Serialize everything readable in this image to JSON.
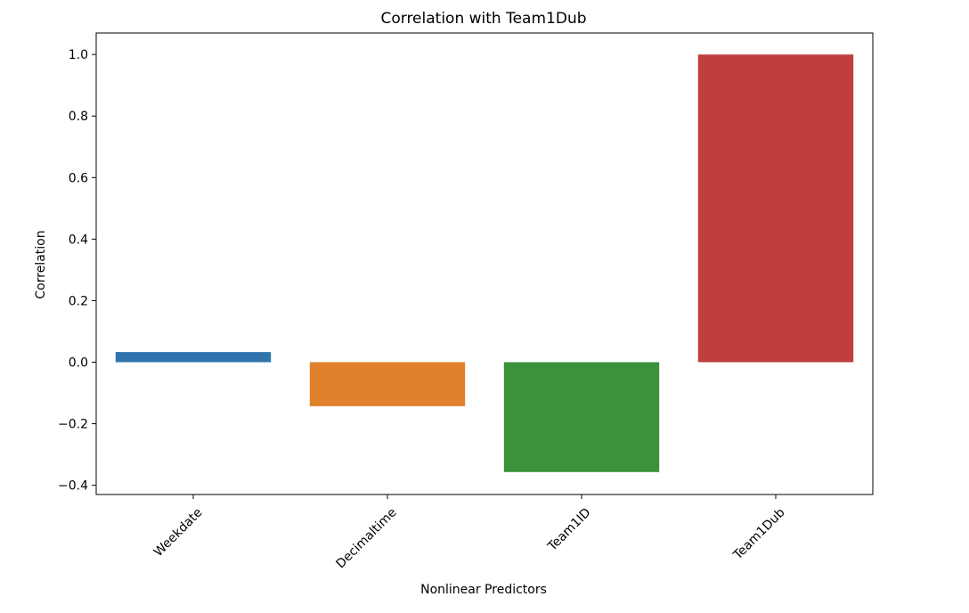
{
  "chart_data": {
    "type": "bar",
    "title": "Correlation with Team1Dub",
    "xlabel": "Nonlinear Predictors",
    "ylabel": "Correlation",
    "categories": [
      "Weekdate",
      "Decimaltime",
      "Team1ID",
      "Team1Dub"
    ],
    "values": [
      0.033,
      -0.143,
      -0.357,
      1.0
    ],
    "colors": [
      "#2f74ac",
      "#e1812c",
      "#3a923a",
      "#c03d3e"
    ],
    "ylim": [
      -0.43,
      1.07
    ],
    "yticks": [
      -0.4,
      -0.2,
      0.0,
      0.2,
      0.4,
      0.6,
      0.8,
      1.0
    ],
    "ytick_labels": [
      "−0.4",
      "−0.2",
      "0.0",
      "0.2",
      "0.4",
      "0.6",
      "0.8",
      "1.0"
    ],
    "grid": false,
    "xtick_rotation": 45
  }
}
